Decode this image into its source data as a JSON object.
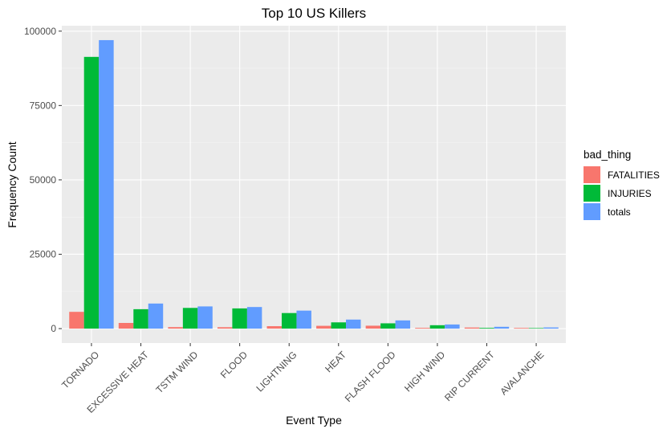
{
  "chart_data": {
    "type": "bar",
    "title": "Top 10 US Killers",
    "xlabel": "Event Type",
    "ylabel": "Frequency Count",
    "categories": [
      "TORNADO",
      "EXCESSIVE HEAT",
      "TSTM WIND",
      "FLOOD",
      "LIGHTNING",
      "HEAT",
      "FLASH FLOOD",
      "HIGH WIND",
      "RIP CURRENT",
      "AVALANCHE"
    ],
    "series": [
      {
        "name": "FATALITIES",
        "color": "#F8766D",
        "values": [
          5633,
          1903,
          504,
          470,
          816,
          937,
          978,
          248,
          368,
          224
        ]
      },
      {
        "name": "INJURIES",
        "color": "#00BA38",
        "values": [
          91346,
          6525,
          6957,
          6789,
          5230,
          2100,
          1777,
          1137,
          232,
          170
        ]
      },
      {
        "name": "totals",
        "color": "#619CFF",
        "values": [
          96979,
          8428,
          7461,
          7259,
          6046,
          3037,
          2755,
          1385,
          600,
          394
        ]
      }
    ],
    "ylim": [
      -4849,
      101828
    ],
    "yticks": [
      0,
      25000,
      50000,
      75000,
      100000
    ],
    "ytick_labels": [
      "0",
      "25000",
      "50000",
      "75000",
      "100000"
    ],
    "grid": true,
    "legend": {
      "title": "bad_thing",
      "position": "right"
    }
  }
}
